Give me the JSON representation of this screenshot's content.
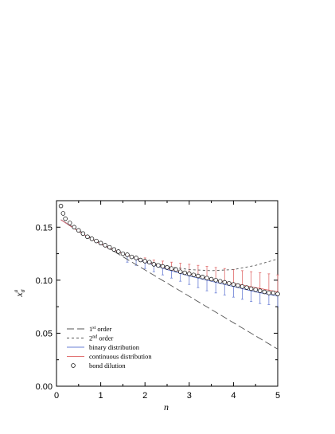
{
  "chart_data": {
    "type": "line",
    "title": "",
    "xlabel": "n",
    "ylabel_main": "x",
    "ylabel_sub": "σ",
    "ylabel_sup": "a",
    "xlim": [
      0,
      5
    ],
    "ylim": [
      0.0,
      0.175
    ],
    "x_ticks": [
      "0",
      "1",
      "2",
      "3",
      "4",
      "5"
    ],
    "y_ticks": [
      "0.00",
      "0.05",
      "0.10",
      "0.15"
    ],
    "x_tick_values": [
      0,
      1,
      2,
      3,
      4,
      5
    ],
    "y_tick_values": [
      0.0,
      0.05,
      0.1,
      0.15
    ],
    "grid": false,
    "legend_position": "bottom-left",
    "legend": [
      {
        "label": "1",
        "superscript": "st",
        "suffix": " order",
        "style": "long-dash",
        "color": "#555555"
      },
      {
        "label": "2",
        "superscript": "nd",
        "suffix": " order",
        "style": "short-dash",
        "color": "#555555"
      },
      {
        "label": "binary distribution",
        "superscript": "",
        "suffix": "",
        "style": "solid",
        "color": "#6a7fd6"
      },
      {
        "label": "continuous distribution",
        "superscript": "",
        "suffix": "",
        "style": "solid",
        "color": "#e06a6a"
      },
      {
        "label": "bond dilution",
        "superscript": "",
        "suffix": "",
        "style": "circle",
        "color": "#000000"
      }
    ],
    "series": [
      {
        "name": "1st order",
        "style": "long-dash",
        "color": "#555555",
        "x": [
          0.1,
          5.0
        ],
        "y": [
          0.157,
          0.035
        ]
      },
      {
        "name": "2nd order",
        "style": "short-dash",
        "color": "#555555",
        "x": [
          0.1,
          0.5,
          1.0,
          1.5,
          2.0,
          2.5,
          3.0,
          3.5,
          4.0,
          4.5,
          5.0
        ],
        "y": [
          0.157,
          0.146,
          0.134,
          0.125,
          0.118,
          0.113,
          0.11,
          0.109,
          0.11,
          0.114,
          0.12
        ]
      },
      {
        "name": "binary distribution",
        "style": "solid",
        "color": "#6a7fd6",
        "x": [
          0.1,
          0.5,
          1.0,
          1.5,
          2.0,
          2.5,
          3.0,
          3.5,
          4.0,
          4.5,
          5.0
        ],
        "y": [
          0.157,
          0.146,
          0.134,
          0.125,
          0.117,
          0.11,
          0.104,
          0.099,
          0.094,
          0.089,
          0.085
        ],
        "error_x": [
          1.6,
          1.8,
          2.0,
          2.2,
          2.4,
          2.6,
          2.8,
          3.0,
          3.2,
          3.4,
          3.6,
          3.8,
          4.0,
          4.2,
          4.4,
          4.6,
          4.8,
          5.0
        ],
        "error_lower": [
          0.117,
          0.114,
          0.111,
          0.108,
          0.105,
          0.102,
          0.099,
          0.096,
          0.093,
          0.09,
          0.088,
          0.086,
          0.084,
          0.082,
          0.08,
          0.078,
          0.077,
          0.075
        ]
      },
      {
        "name": "continuous distribution",
        "style": "solid",
        "color": "#e06a6a",
        "x": [
          0.1,
          0.5,
          1.0,
          1.5,
          2.0,
          2.5,
          3.0,
          3.5,
          4.0,
          4.5,
          5.0
        ],
        "y": [
          0.157,
          0.146,
          0.134,
          0.125,
          0.118,
          0.111,
          0.106,
          0.101,
          0.097,
          0.093,
          0.089
        ],
        "error_x": [
          1.6,
          1.8,
          2.0,
          2.2,
          2.4,
          2.6,
          2.8,
          3.0,
          3.2,
          3.4,
          3.6,
          3.8,
          4.0,
          4.2,
          4.4,
          4.6,
          4.8,
          5.0
        ],
        "error_upper": [
          0.124,
          0.122,
          0.121,
          0.119,
          0.118,
          0.117,
          0.116,
          0.115,
          0.114,
          0.113,
          0.112,
          0.111,
          0.11,
          0.109,
          0.108,
          0.107,
          0.106,
          0.105
        ]
      },
      {
        "name": "bond dilution",
        "style": "circle",
        "color": "#000000",
        "x": [
          0.1,
          0.15,
          0.2,
          0.3,
          0.4,
          0.5,
          0.6,
          0.7,
          0.8,
          0.9,
          1.0,
          1.1,
          1.2,
          1.3,
          1.4,
          1.5,
          1.6,
          1.7,
          1.8,
          1.9,
          2.0,
          2.1,
          2.2,
          2.3,
          2.4,
          2.5,
          2.6,
          2.7,
          2.8,
          2.9,
          3.0,
          3.1,
          3.2,
          3.3,
          3.4,
          3.5,
          3.6,
          3.7,
          3.8,
          3.9,
          4.0,
          4.1,
          4.2,
          4.3,
          4.4,
          4.5,
          4.6,
          4.7,
          4.8,
          4.9,
          5.0
        ],
        "y": [
          0.17,
          0.163,
          0.158,
          0.154,
          0.15,
          0.147,
          0.144,
          0.141,
          0.139,
          0.137,
          0.135,
          0.133,
          0.131,
          0.129,
          0.127,
          0.125,
          0.124,
          0.122,
          0.121,
          0.119,
          0.118,
          0.117,
          0.115,
          0.114,
          0.113,
          0.112,
          0.111,
          0.11,
          0.108,
          0.107,
          0.106,
          0.105,
          0.104,
          0.103,
          0.102,
          0.101,
          0.1,
          0.099,
          0.098,
          0.097,
          0.096,
          0.095,
          0.094,
          0.093,
          0.092,
          0.091,
          0.09,
          0.089,
          0.088,
          0.088,
          0.087
        ]
      }
    ]
  }
}
